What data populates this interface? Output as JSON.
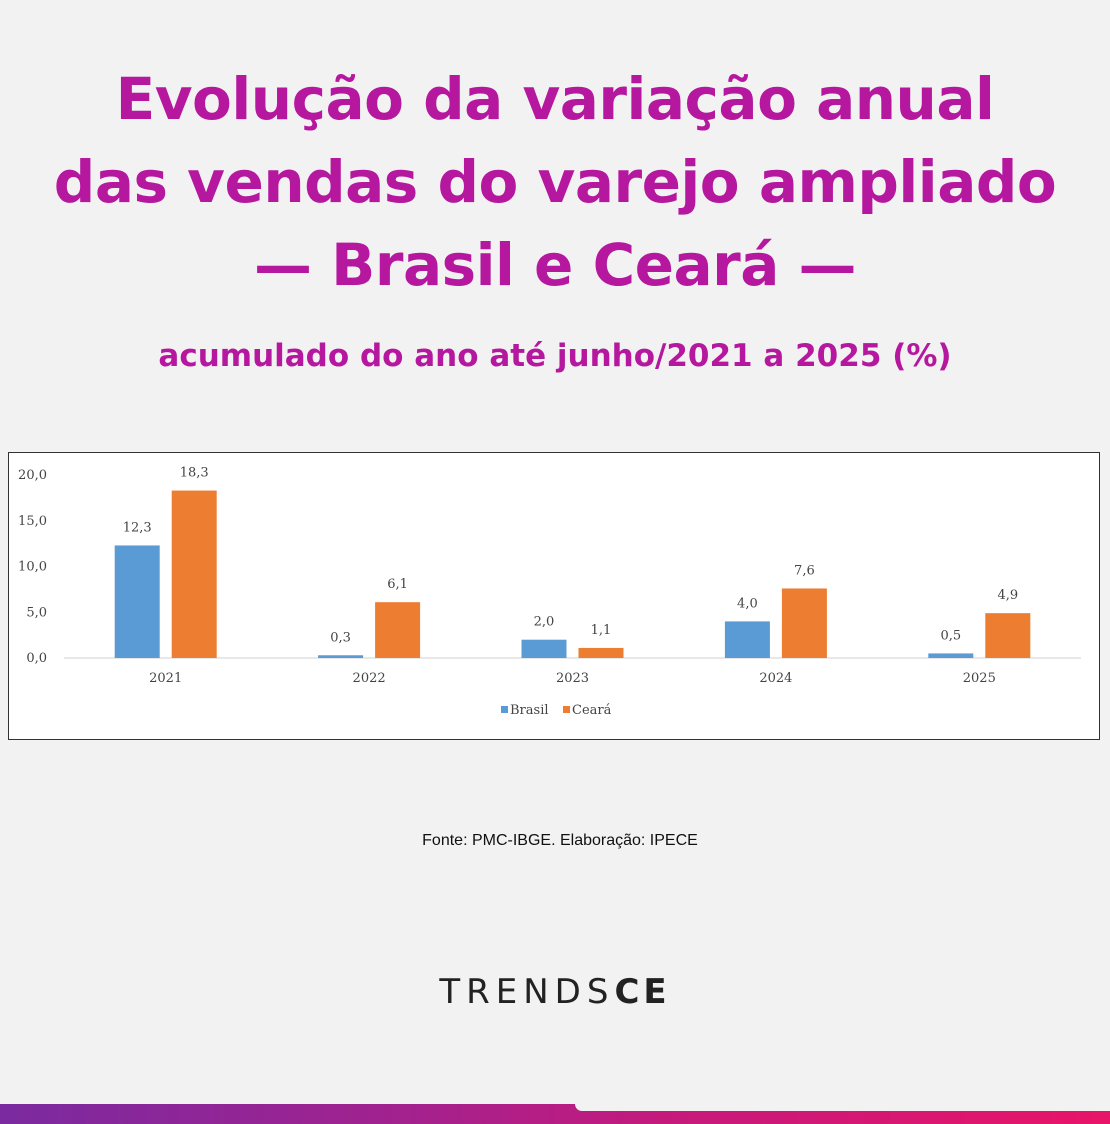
{
  "title_lines": [
    "Evolução da variação anual",
    "das vendas do varejo ampliado",
    "— Brasil e Ceará —"
  ],
  "subtitle": "acumulado do ano até junho/2021 a 2025 (%)",
  "source": "Fonte: PMC-IBGE. Elaboração: IPECE",
  "logo": {
    "light": "TRENDS",
    "bold": "CE"
  },
  "colors": {
    "title": "#b5179e",
    "brasil": "#5b9bd5",
    "ceara": "#ed7d31"
  },
  "chart_data": {
    "type": "bar",
    "categories": [
      "2021",
      "2022",
      "2023",
      "2024",
      "2025"
    ],
    "series": [
      {
        "name": "Brasil",
        "values": [
          12.3,
          0.3,
          2.0,
          4.0,
          0.5
        ],
        "labels": [
          "12,3",
          "0,3",
          "2,0",
          "4,0",
          "0,5"
        ],
        "color": "#5b9bd5"
      },
      {
        "name": "Ceará",
        "values": [
          18.3,
          6.1,
          1.1,
          7.6,
          4.9
        ],
        "labels": [
          "18,3",
          "6,1",
          "1,1",
          "7,6",
          "4,9"
        ],
        "color": "#ed7d31"
      }
    ],
    "ylim": [
      0,
      20
    ],
    "yticks": [
      0,
      5,
      10,
      15,
      20
    ],
    "ytick_labels": [
      "0,0",
      "5,0",
      "10,0",
      "15,0",
      "20,0"
    ],
    "xlabel": "",
    "ylabel": "",
    "grid": false,
    "legend_position": "bottom"
  }
}
